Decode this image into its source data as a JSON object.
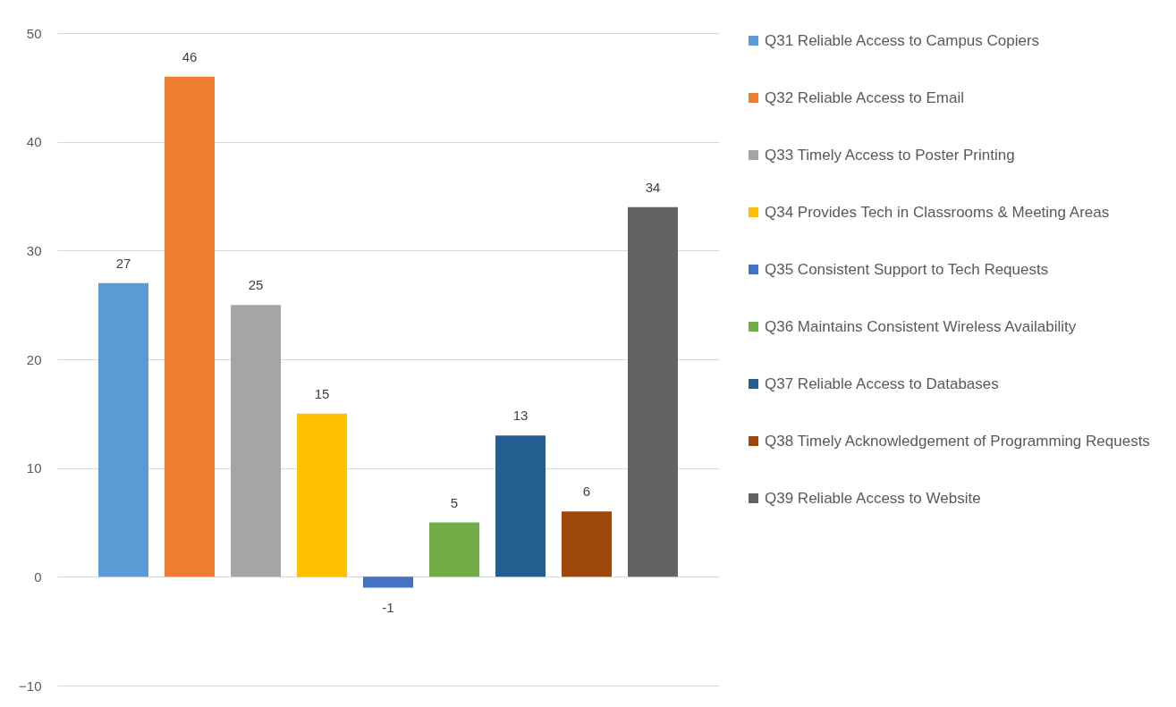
{
  "chart_data": {
    "type": "bar",
    "categories": [
      null
    ],
    "series": [
      {
        "name": "Q31 Reliable Access to Campus Copiers",
        "color": "#5b9bd5",
        "values": [
          27
        ]
      },
      {
        "name": "Q32 Reliable Access to Email",
        "color": "#ed7d31",
        "values": [
          46
        ]
      },
      {
        "name": "Q33 Timely Access to Poster Printing",
        "color": "#a5a5a5",
        "values": [
          25
        ]
      },
      {
        "name": "Q34 Provides Tech in Classrooms & Meeting Areas",
        "color": "#ffc000",
        "values": [
          15
        ]
      },
      {
        "name": "Q35 Consistent Support to Tech Requests",
        "color": "#4472c4",
        "values": [
          -1
        ]
      },
      {
        "name": "Q36 Maintains Consistent Wireless Availability",
        "color": "#70ad47",
        "values": [
          5
        ]
      },
      {
        "name": "Q37 Reliable Access to Databases",
        "color": "#255e91",
        "values": [
          13
        ]
      },
      {
        "name": "Q38 Timely Acknowledgement of Programming Requests",
        "color": "#9e480e",
        "values": [
          6
        ]
      },
      {
        "name": "Q39 Reliable Access to Website",
        "color": "#636363",
        "values": [
          34
        ]
      }
    ],
    "ylim": [
      -10,
      50
    ],
    "yticks": [
      -10,
      0,
      10,
      20,
      30,
      40,
      50
    ],
    "grid": "y",
    "legend": "right",
    "data_labels": true
  }
}
